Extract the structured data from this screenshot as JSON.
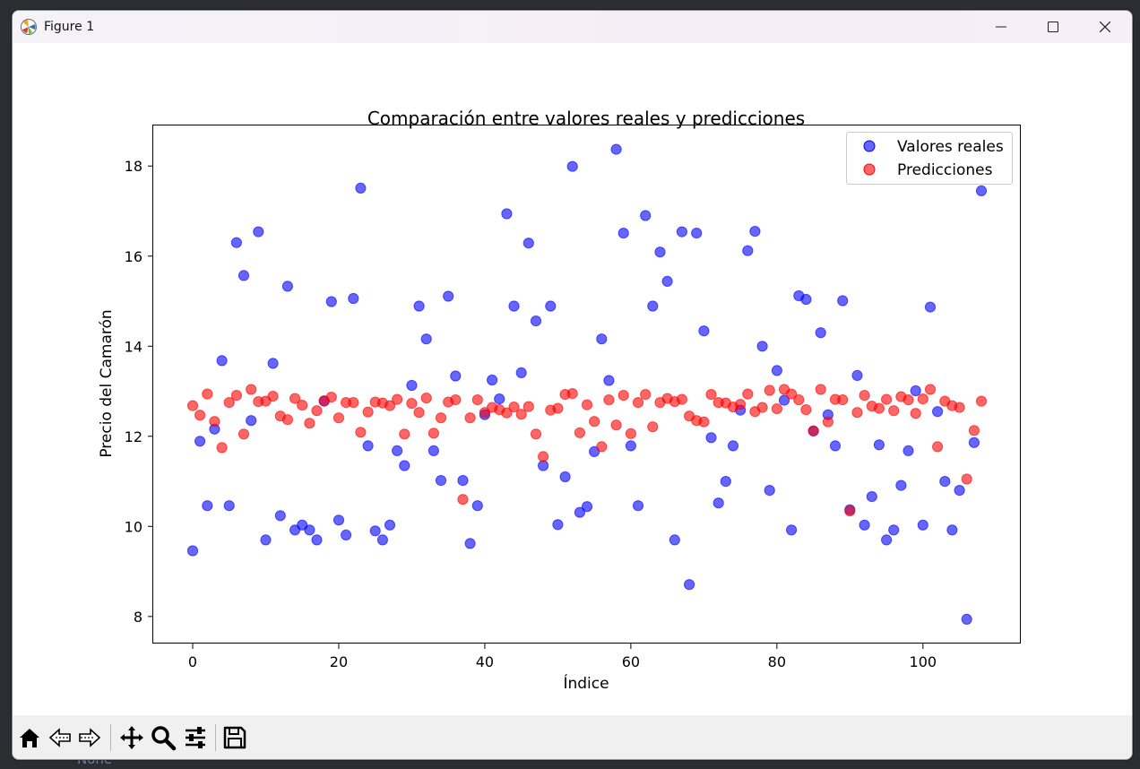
{
  "background": {
    "label": "None"
  },
  "window": {
    "title": "Figure 1"
  },
  "toolbar": {
    "buttons": [
      "home-icon",
      "back-icon",
      "forward-icon",
      "pan-icon",
      "zoom-icon",
      "configure-subplots-icon",
      "save-icon"
    ]
  },
  "chart_data": {
    "type": "scatter",
    "title": "Comparación entre valores reales y predicciones",
    "xlabel": "Índice",
    "ylabel": "Precio del Camarón",
    "xlim": [
      -5.4,
      113.4
    ],
    "ylim": [
      7.4,
      18.9
    ],
    "xticks": [
      0,
      20,
      40,
      60,
      80,
      100
    ],
    "yticks": [
      8,
      10,
      12,
      14,
      16,
      18
    ],
    "grid": false,
    "legend_position": "top-right",
    "series": [
      {
        "name": "Valores reales",
        "color": "#0000ff",
        "x": [
          0,
          1,
          2,
          3,
          4,
          5,
          6,
          7,
          8,
          9,
          10,
          11,
          12,
          13,
          14,
          15,
          16,
          17,
          18,
          19,
          20,
          21,
          22,
          23,
          24,
          25,
          26,
          27,
          28,
          29,
          30,
          31,
          32,
          33,
          34,
          35,
          36,
          37,
          38,
          39,
          40,
          41,
          42,
          43,
          44,
          45,
          46,
          47,
          48,
          49,
          50,
          51,
          52,
          53,
          54,
          55,
          56,
          57,
          58,
          59,
          60,
          61,
          62,
          63,
          64,
          65,
          66,
          67,
          68,
          69,
          70,
          71,
          72,
          73,
          74,
          75,
          76,
          77,
          78,
          79,
          80,
          81,
          82,
          83,
          84,
          85,
          86,
          87,
          88,
          89,
          90,
          91,
          92,
          93,
          94,
          95,
          96,
          97,
          98,
          99,
          100,
          101,
          102,
          103,
          104,
          105,
          106,
          107,
          108
        ],
        "y": [
          9.46,
          11.89,
          10.46,
          12.16,
          13.68,
          10.46,
          16.3,
          15.57,
          12.35,
          16.54,
          9.7,
          13.62,
          10.24,
          15.33,
          9.92,
          10.03,
          9.92,
          9.7,
          12.78,
          14.99,
          10.14,
          9.81,
          15.06,
          17.51,
          11.79,
          9.9,
          9.7,
          10.03,
          11.68,
          11.35,
          13.13,
          14.89,
          14.16,
          11.68,
          11.02,
          15.11,
          13.34,
          11.02,
          9.62,
          10.46,
          12.48,
          13.25,
          12.83,
          16.94,
          14.89,
          13.41,
          16.29,
          14.56,
          11.35,
          14.89,
          10.04,
          11.1,
          17.99,
          10.31,
          10.44,
          11.66,
          14.16,
          13.24,
          18.37,
          16.51,
          11.79,
          10.46,
          16.9,
          14.89,
          16.09,
          15.44,
          9.7,
          16.54,
          8.71,
          16.51,
          14.34,
          11.97,
          10.52,
          11.0,
          11.79,
          12.58,
          16.12,
          16.55,
          14.0,
          10.8,
          13.46,
          12.8,
          9.92,
          15.12,
          15.04,
          12.12,
          14.3,
          12.48,
          11.79,
          15.01,
          10.37,
          13.35,
          10.03,
          10.66,
          11.81,
          9.7,
          9.92,
          10.91,
          11.68,
          13.01,
          10.03,
          14.87,
          12.55,
          11.0,
          9.92,
          10.8,
          7.94,
          11.86,
          17.45
        ]
      },
      {
        "name": "Predicciones",
        "color": "#ff0000",
        "x": [
          0,
          1,
          2,
          3,
          4,
          5,
          6,
          7,
          8,
          9,
          10,
          11,
          12,
          13,
          14,
          15,
          16,
          17,
          18,
          19,
          20,
          21,
          22,
          23,
          24,
          25,
          26,
          27,
          28,
          29,
          30,
          31,
          32,
          33,
          34,
          35,
          36,
          37,
          38,
          39,
          40,
          41,
          42,
          43,
          44,
          45,
          46,
          47,
          48,
          49,
          50,
          51,
          52,
          53,
          54,
          55,
          56,
          57,
          58,
          59,
          60,
          61,
          62,
          63,
          64,
          65,
          66,
          67,
          68,
          69,
          70,
          71,
          72,
          73,
          74,
          75,
          76,
          77,
          78,
          79,
          80,
          81,
          82,
          83,
          84,
          85,
          86,
          87,
          88,
          89,
          90,
          91,
          92,
          93,
          94,
          95,
          96,
          97,
          98,
          99,
          100,
          101,
          102,
          103,
          104,
          105,
          106,
          107,
          108
        ],
        "y": [
          12.68,
          12.47,
          12.94,
          12.33,
          11.75,
          12.75,
          12.91,
          12.05,
          13.04,
          12.77,
          12.78,
          12.89,
          12.45,
          12.37,
          12.84,
          12.69,
          12.29,
          12.57,
          12.79,
          12.87,
          12.41,
          12.75,
          12.75,
          12.09,
          12.54,
          12.76,
          12.74,
          12.68,
          12.82,
          12.05,
          12.73,
          12.53,
          12.85,
          12.07,
          12.41,
          12.76,
          12.81,
          10.6,
          12.41,
          12.81,
          12.53,
          12.64,
          12.59,
          12.52,
          12.65,
          12.49,
          12.66,
          12.05,
          11.55,
          12.58,
          12.62,
          12.93,
          12.95,
          12.08,
          12.7,
          12.33,
          11.77,
          12.81,
          12.25,
          12.91,
          12.06,
          12.75,
          12.93,
          12.21,
          12.75,
          12.84,
          12.77,
          12.82,
          12.45,
          12.35,
          12.32,
          12.93,
          12.75,
          12.74,
          12.65,
          12.71,
          12.94,
          12.55,
          12.64,
          13.02,
          12.61,
          13.04,
          12.94,
          12.81,
          12.59,
          12.12,
          13.04,
          12.32,
          12.82,
          12.81,
          10.34,
          12.53,
          12.91,
          12.67,
          12.62,
          12.82,
          12.57,
          12.88,
          12.81,
          12.51,
          12.83,
          13.04,
          11.77,
          12.78,
          12.68,
          12.64,
          11.05,
          12.13,
          12.78
        ]
      }
    ]
  }
}
